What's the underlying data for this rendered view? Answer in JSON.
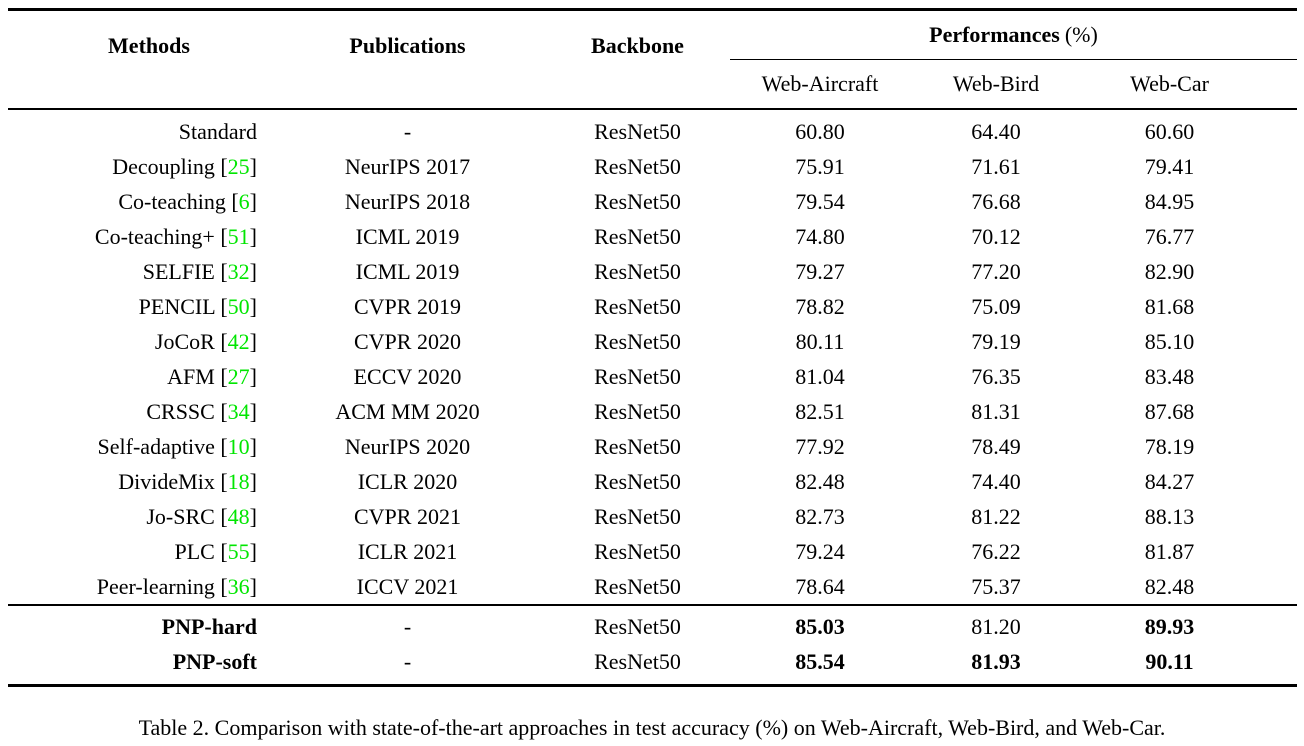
{
  "table": {
    "caption": "Table 2. Comparison with state-of-the-art approaches in test accuracy (%) on Web-Aircraft, Web-Bird, and Web-Car.",
    "citation_color": "#00e600",
    "header": {
      "methods": "Methods",
      "publications": "Publications",
      "backbone": "Backbone",
      "performances": "Performances",
      "performances_suffix": "(%)",
      "subcolumns": [
        "Web-Aircraft",
        "Web-Bird",
        "Web-Car"
      ]
    },
    "rows": [
      {
        "section": "main",
        "method": "Standard",
        "cite": "",
        "publication": "-",
        "backbone": "ResNet50",
        "values": [
          "60.80",
          "64.40",
          "60.60"
        ],
        "bold_method": false,
        "bold_values": [
          false,
          false,
          false
        ]
      },
      {
        "section": "main",
        "method": "Decoupling",
        "cite": "25",
        "publication": "NeurIPS 2017",
        "backbone": "ResNet50",
        "values": [
          "75.91",
          "71.61",
          "79.41"
        ],
        "bold_method": false,
        "bold_values": [
          false,
          false,
          false
        ]
      },
      {
        "section": "main",
        "method": "Co-teaching",
        "cite": "6",
        "publication": "NeurIPS 2018",
        "backbone": "ResNet50",
        "values": [
          "79.54",
          "76.68",
          "84.95"
        ],
        "bold_method": false,
        "bold_values": [
          false,
          false,
          false
        ]
      },
      {
        "section": "main",
        "method": "Co-teaching+",
        "cite": "51",
        "publication": "ICML 2019",
        "backbone": "ResNet50",
        "values": [
          "74.80",
          "70.12",
          "76.77"
        ],
        "bold_method": false,
        "bold_values": [
          false,
          false,
          false
        ]
      },
      {
        "section": "main",
        "method": "SELFIE",
        "cite": "32",
        "publication": "ICML 2019",
        "backbone": "ResNet50",
        "values": [
          "79.27",
          "77.20",
          "82.90"
        ],
        "bold_method": false,
        "bold_values": [
          false,
          false,
          false
        ]
      },
      {
        "section": "main",
        "method": "PENCIL",
        "cite": "50",
        "publication": "CVPR 2019",
        "backbone": "ResNet50",
        "values": [
          "78.82",
          "75.09",
          "81.68"
        ],
        "bold_method": false,
        "bold_values": [
          false,
          false,
          false
        ]
      },
      {
        "section": "main",
        "method": "JoCoR",
        "cite": "42",
        "publication": "CVPR 2020",
        "backbone": "ResNet50",
        "values": [
          "80.11",
          "79.19",
          "85.10"
        ],
        "bold_method": false,
        "bold_values": [
          false,
          false,
          false
        ]
      },
      {
        "section": "main",
        "method": "AFM",
        "cite": "27",
        "publication": "ECCV 2020",
        "backbone": "ResNet50",
        "values": [
          "81.04",
          "76.35",
          "83.48"
        ],
        "bold_method": false,
        "bold_values": [
          false,
          false,
          false
        ]
      },
      {
        "section": "main",
        "method": "CRSSC",
        "cite": "34",
        "publication": "ACM MM 2020",
        "backbone": "ResNet50",
        "values": [
          "82.51",
          "81.31",
          "87.68"
        ],
        "bold_method": false,
        "bold_values": [
          false,
          false,
          false
        ]
      },
      {
        "section": "main",
        "method": "Self-adaptive",
        "cite": "10",
        "publication": "NeurIPS 2020",
        "backbone": "ResNet50",
        "values": [
          "77.92",
          "78.49",
          "78.19"
        ],
        "bold_method": false,
        "bold_values": [
          false,
          false,
          false
        ]
      },
      {
        "section": "main",
        "method": "DivideMix",
        "cite": "18",
        "publication": "ICLR 2020",
        "backbone": "ResNet50",
        "values": [
          "82.48",
          "74.40",
          "84.27"
        ],
        "bold_method": false,
        "bold_values": [
          false,
          false,
          false
        ]
      },
      {
        "section": "main",
        "method": "Jo-SRC",
        "cite": "48",
        "publication": "CVPR 2021",
        "backbone": "ResNet50",
        "values": [
          "82.73",
          "81.22",
          "88.13"
        ],
        "bold_method": false,
        "bold_values": [
          false,
          false,
          false
        ]
      },
      {
        "section": "main",
        "method": "PLC",
        "cite": "55",
        "publication": "ICLR 2021",
        "backbone": "ResNet50",
        "values": [
          "79.24",
          "76.22",
          "81.87"
        ],
        "bold_method": false,
        "bold_values": [
          false,
          false,
          false
        ]
      },
      {
        "section": "main",
        "method": "Peer-learning",
        "cite": "36",
        "publication": "ICCV 2021",
        "backbone": "ResNet50",
        "values": [
          "78.64",
          "75.37",
          "82.48"
        ],
        "bold_method": false,
        "bold_values": [
          false,
          false,
          false
        ]
      },
      {
        "section": "pnp",
        "method": "PNP-hard",
        "cite": "",
        "publication": "-",
        "backbone": "ResNet50",
        "values": [
          "85.03",
          "81.20",
          "89.93"
        ],
        "bold_method": true,
        "bold_values": [
          true,
          false,
          true
        ]
      },
      {
        "section": "pnp",
        "method": "PNP-soft",
        "cite": "",
        "publication": "-",
        "backbone": "ResNet50",
        "values": [
          "85.54",
          "81.93",
          "90.11"
        ],
        "bold_method": true,
        "bold_values": [
          true,
          true,
          true
        ]
      }
    ]
  }
}
